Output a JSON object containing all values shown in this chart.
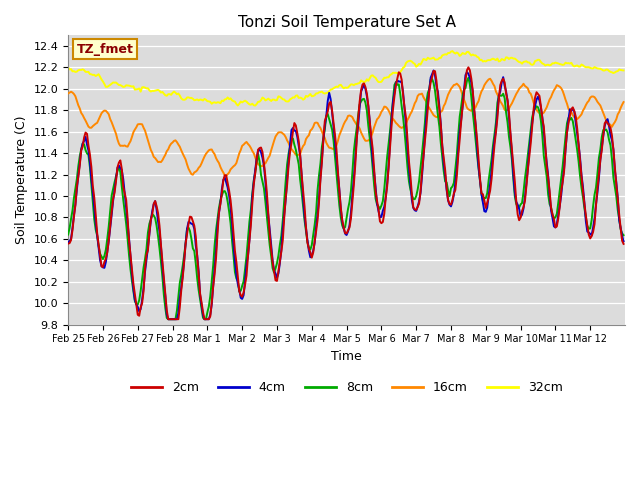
{
  "title": "Tonzi Soil Temperature Set A",
  "xlabel": "Time",
  "ylabel": "Soil Temperature (C)",
  "ylim": [
    9.8,
    12.5
  ],
  "xlim": [
    0,
    384
  ],
  "bg_color": "#dcdcdc",
  "legend_label": "TZ_fmet",
  "legend_bg": "#ffffcc",
  "legend_border": "#cc8800",
  "tick_labels": [
    "Feb 25",
    "Feb 26",
    "Feb 27",
    "Feb 28",
    "Mar 1",
    "Mar 2",
    "Mar 3",
    "Mar 4",
    "Mar 5",
    "Mar 6",
    "Mar 7",
    "Mar 8",
    "Mar 9",
    "Mar 10",
    "Mar 11",
    "Mar 12"
  ],
  "tick_positions": [
    0,
    24,
    48,
    72,
    96,
    120,
    144,
    168,
    192,
    216,
    240,
    264,
    288,
    312,
    336,
    360
  ],
  "colors": {
    "2cm": "#cc0000",
    "4cm": "#0000cc",
    "8cm": "#00aa00",
    "16cm": "#ff8800",
    "32cm": "#ffff00"
  }
}
